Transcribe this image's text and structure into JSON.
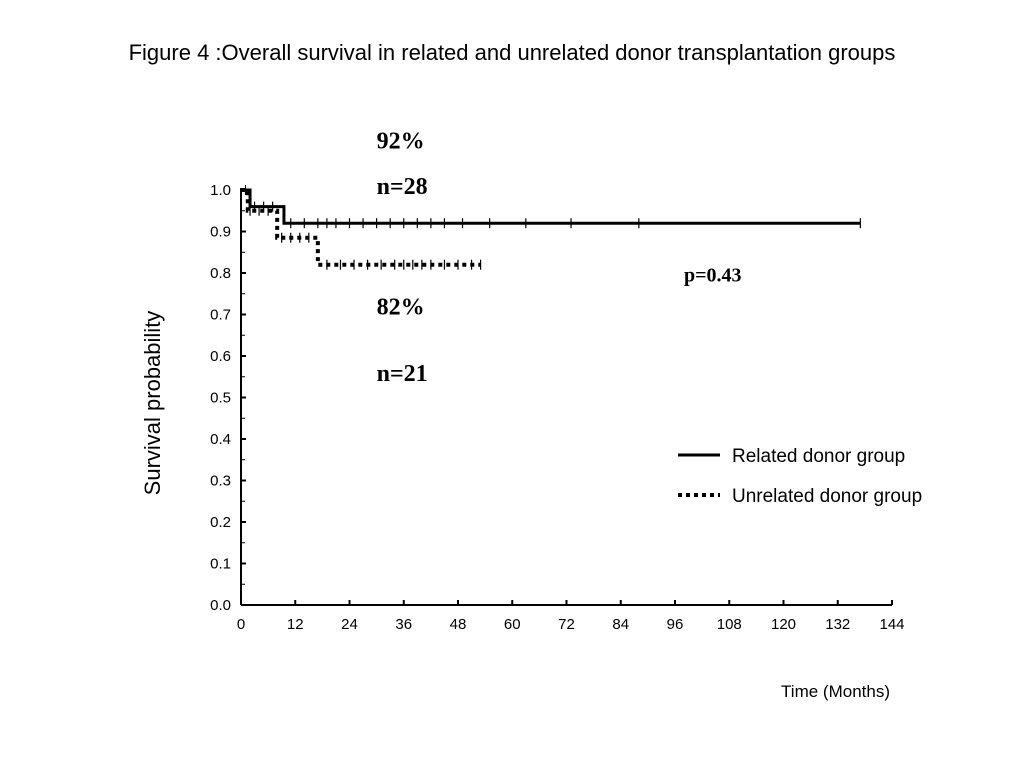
{
  "title": "Figure 4 :Overall survival in related and unrelated donor transplantation groups",
  "chart_data": {
    "type": "line",
    "title": "Figure 4 :Overall survival in related and unrelated donor transplantation groups",
    "xlabel": "Time (Months)",
    "ylabel": "Survival probability",
    "xlim": [
      0,
      144
    ],
    "ylim": [
      0,
      1
    ],
    "x_ticks": [
      "0",
      "12",
      "24",
      "36",
      "48",
      "60",
      "72",
      "84",
      "96",
      "108",
      "120",
      "132",
      "144"
    ],
    "y_ticks": [
      "0.0",
      "0.1",
      "0.2",
      "0.3",
      "0.4",
      "0.5",
      "0.6",
      "0.7",
      "0.8",
      "0.9",
      "1.0"
    ],
    "grid": false,
    "legend_position": "bottom-right",
    "series": [
      {
        "name": "Related donor group",
        "style": "solid",
        "steps": [
          [
            0,
            1.0
          ],
          [
            2,
            0.96
          ],
          [
            9.5,
            0.92
          ],
          [
            137,
            0.92
          ]
        ],
        "censored": [
          1,
          3,
          5,
          7,
          11,
          14,
          17,
          19,
          21,
          24,
          27,
          30,
          33,
          36,
          39,
          42,
          45,
          49,
          55,
          63,
          73,
          88,
          137
        ]
      },
      {
        "name": "Unrelated donor group",
        "style": "dotted",
        "steps": [
          [
            0,
            1.0
          ],
          [
            1.5,
            0.95
          ],
          [
            8,
            0.885
          ],
          [
            17,
            0.82
          ],
          [
            53,
            0.82
          ]
        ],
        "censored": [
          2,
          4,
          6,
          9,
          11,
          13,
          15,
          19,
          22,
          25,
          28,
          31,
          34,
          36,
          38,
          40,
          42,
          45,
          48,
          51,
          53
        ]
      }
    ],
    "annotations": [
      {
        "text": "92%",
        "x": 30,
        "y": 1.1
      },
      {
        "text": "n=28",
        "x": 30,
        "y": 0.99
      },
      {
        "text": "82%",
        "x": 30,
        "y": 0.7
      },
      {
        "text": "n=21",
        "x": 30,
        "y": 0.54
      },
      {
        "text": "p=0.43",
        "x": 98,
        "y": 0.78
      }
    ]
  }
}
